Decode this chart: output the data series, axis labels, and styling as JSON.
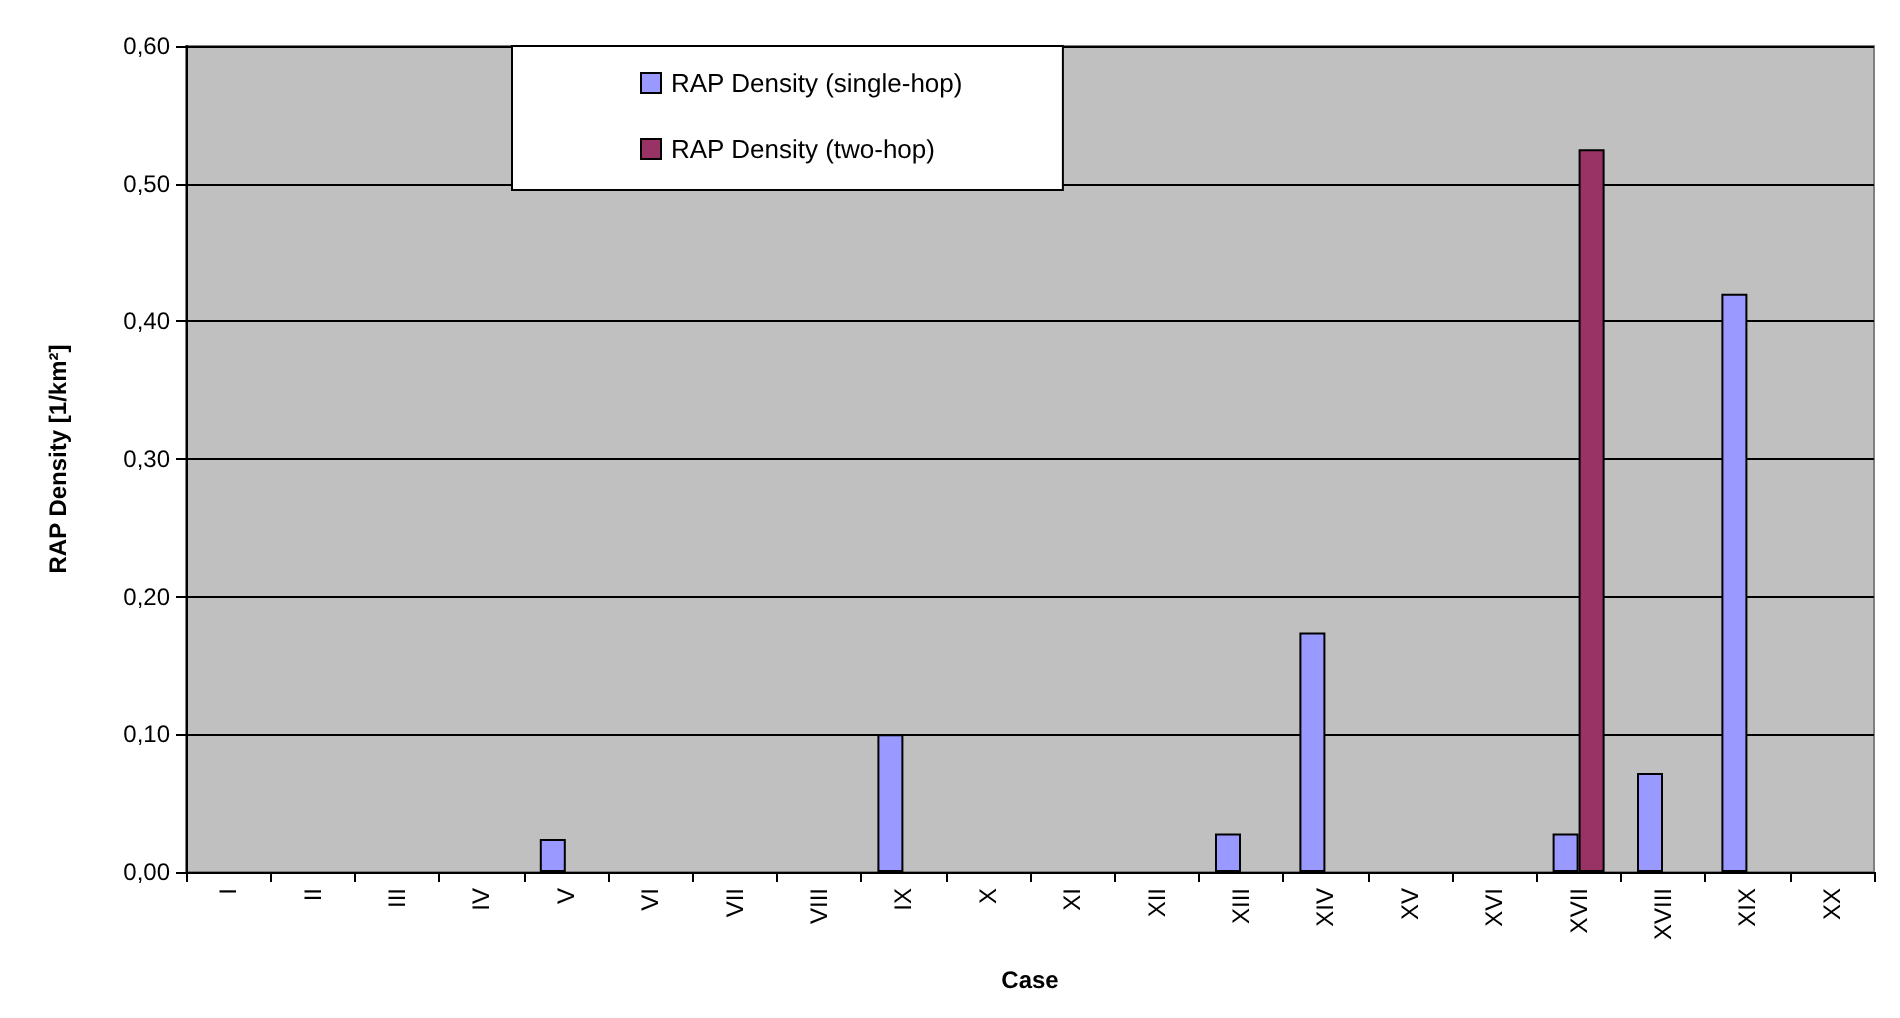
{
  "chart_data": {
    "type": "bar",
    "xlabel": "Case",
    "ylabel": "RAP Density [1/km²]",
    "categories": [
      "I",
      "II",
      "III",
      "IV",
      "V",
      "VI",
      "VII",
      "VIII",
      "IX",
      "X",
      "XI",
      "XII",
      "XIII",
      "XIV",
      "XV",
      "XVI",
      "XVII",
      "XVIII",
      "XIX",
      "XX"
    ],
    "series": [
      {
        "name": "RAP Density (single-hop)",
        "color": "#9999ff",
        "values": [
          null,
          null,
          null,
          null,
          0.024,
          null,
          null,
          null,
          0.1,
          null,
          null,
          null,
          0.028,
          0.174,
          null,
          null,
          0.028,
          0.072,
          0.42,
          null
        ]
      },
      {
        "name": "RAP Density (two-hop)",
        "color": "#993366",
        "values": [
          null,
          null,
          null,
          null,
          null,
          null,
          null,
          null,
          null,
          null,
          null,
          null,
          null,
          null,
          null,
          null,
          0.525,
          null,
          null,
          null
        ]
      }
    ],
    "ylim": [
      0,
      0.6
    ],
    "yticks": [
      {
        "value": 0,
        "label": "0,00"
      },
      {
        "value": 0.1,
        "label": "0,10"
      },
      {
        "value": 0.2,
        "label": "0,20"
      },
      {
        "value": 0.3,
        "label": "0,30"
      },
      {
        "value": 0.4,
        "label": "0,40"
      },
      {
        "value": 0.5,
        "label": "0,50"
      },
      {
        "value": 0.6,
        "label": "0,60"
      }
    ],
    "grid": "y",
    "legend": "top"
  }
}
